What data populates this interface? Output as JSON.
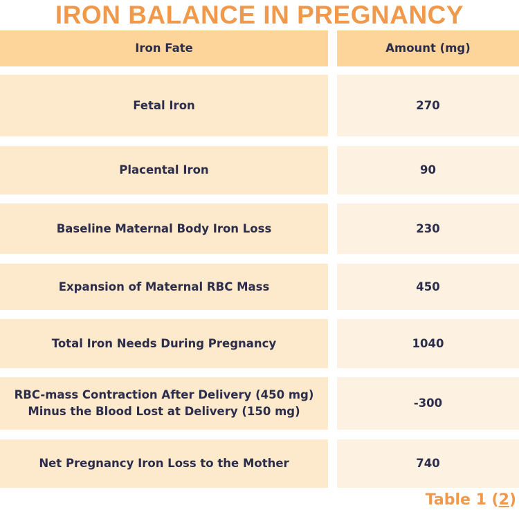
{
  "title": "IRON BALANCE IN PREGNANCY",
  "table": {
    "headers": [
      "Iron Fate",
      "Amount (mg)"
    ],
    "rows": [
      {
        "fate": "Fetal Iron",
        "amount": "270"
      },
      {
        "fate": "Placental Iron",
        "amount": "90"
      },
      {
        "fate": "Baseline Maternal Body Iron Loss",
        "amount": "230"
      },
      {
        "fate": "Expansion of Maternal RBC Mass",
        "amount": "450"
      },
      {
        "fate": "Total Iron Needs During Pregnancy",
        "amount": "1040"
      },
      {
        "fate": "RBC-mass Contraction After Delivery (450 mg)\nMinus the Blood Lost at Delivery (150 mg)",
        "amount": "-300"
      },
      {
        "fate": "Net Pregnancy Iron Loss to the Mother",
        "amount": "740"
      }
    ]
  },
  "caption": {
    "text": "Table 1 (",
    "ref": "2",
    "close": ")"
  },
  "colors": {
    "title": "#f0994a",
    "header": "#fdd59b",
    "row_left": "#fde9cb",
    "row_right": "#fdf1e1",
    "text": "#2b2d4a"
  }
}
